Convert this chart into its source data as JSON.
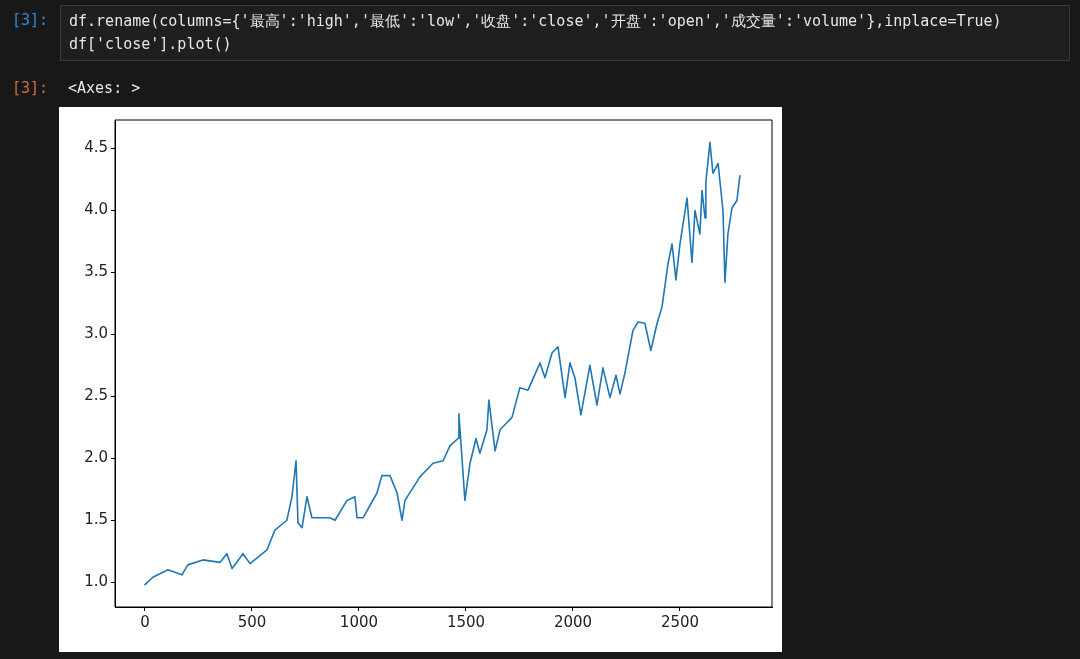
{
  "chart_data": {
    "type": "line",
    "annotations": [
      "[3]:",
      "df.rename(columns={'最高':'high','最低':'low','收盘':'close','开盘':'open','成交量':'volume'},inplace=True)",
      "df['close'].plot()",
      "[3]:",
      "<Axes: >"
    ],
    "x": [
      0,
      37,
      107,
      173,
      200,
      271,
      350,
      383,
      407,
      458,
      491,
      570,
      607,
      663,
      687,
      706,
      715,
      734,
      757,
      780,
      864,
      888,
      944,
      981,
      991,
      1019,
      1084,
      1107,
      1145,
      1178,
      1201,
      1215,
      1285,
      1346,
      1393,
      1425,
      1463,
      1467,
      1495,
      1519,
      1547,
      1565,
      1598,
      1607,
      1636,
      1659,
      1715,
      1752,
      1790,
      1846,
      1869,
      1902,
      1930,
      1963,
      1986,
      2009,
      2037,
      2079,
      2112,
      2140,
      2173,
      2201,
      2220,
      2243,
      2280,
      2304,
      2336,
      2364,
      2393,
      2416,
      2444,
      2463,
      2481,
      2500,
      2533,
      2556,
      2570,
      2593,
      2603,
      2617,
      2621,
      2640,
      2654,
      2678,
      2701,
      2710,
      2724,
      2743,
      2766,
      2780
    ],
    "series": [
      {
        "color": "#1f77b4",
        "values": [
          0.98,
          1.04,
          1.1,
          1.06,
          1.14,
          1.18,
          1.16,
          1.23,
          1.11,
          1.23,
          1.15,
          1.26,
          1.42,
          1.5,
          1.69,
          1.98,
          1.48,
          1.44,
          1.69,
          1.52,
          1.52,
          1.5,
          1.66,
          1.69,
          1.52,
          1.52,
          1.72,
          1.86,
          1.86,
          1.72,
          1.5,
          1.66,
          1.85,
          1.96,
          1.98,
          2.1,
          2.16,
          2.36,
          1.66,
          1.96,
          2.16,
          2.04,
          2.23,
          2.47,
          2.06,
          2.23,
          2.33,
          2.57,
          2.55,
          2.77,
          2.65,
          2.85,
          2.9,
          2.49,
          2.77,
          2.65,
          2.35,
          2.75,
          2.43,
          2.73,
          2.49,
          2.67,
          2.52,
          2.69,
          3.03,
          3.1,
          3.09,
          2.87,
          3.09,
          3.22,
          3.57,
          3.73,
          3.44,
          3.73,
          4.1,
          3.58,
          4.0,
          3.81,
          4.16,
          3.94,
          4.23,
          4.55,
          4.3,
          4.38,
          4.0,
          3.42,
          3.81,
          4.02,
          4.08,
          4.28
        ]
      }
    ],
    "xlim": [
      -140,
      2930
    ],
    "xticks": [
      0,
      500,
      1000,
      1500,
      2000,
      2500
    ],
    "ylim": [
      0.8,
      4.73
    ],
    "yticks": [
      {
        "value": 1,
        "label": "1.0"
      },
      {
        "value": 1.5,
        "label": "1.5"
      },
      {
        "value": 2,
        "label": "2.0"
      },
      {
        "value": 2.5,
        "label": "2.5"
      },
      {
        "value": 3,
        "label": "3.0"
      },
      {
        "value": 3.5,
        "label": "3.5"
      },
      {
        "value": 4,
        "label": "4.0"
      },
      {
        "value": 4.5,
        "label": "4.5"
      }
    ],
    "marker": "none",
    "line_style": "solid"
  }
}
